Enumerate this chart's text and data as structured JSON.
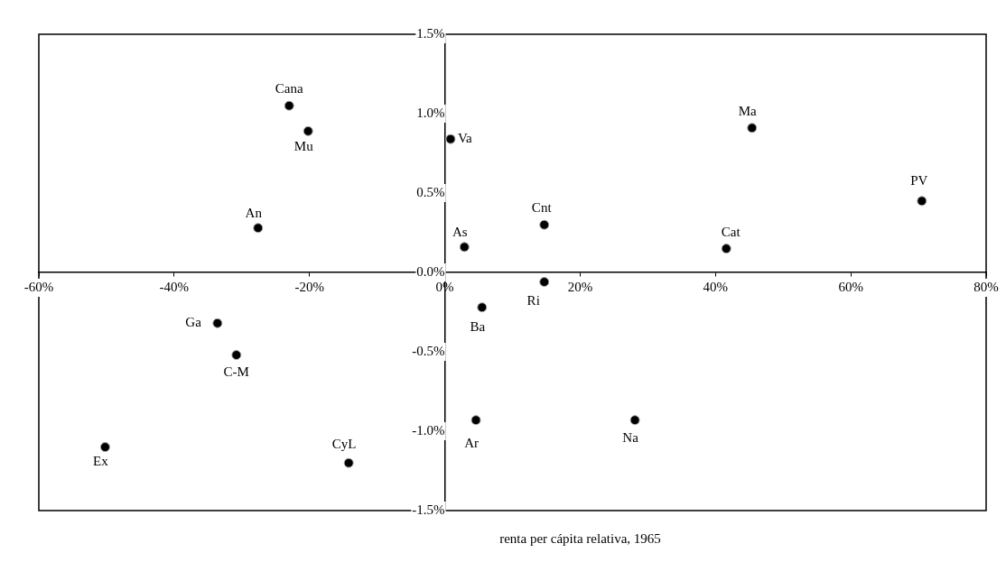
{
  "chart_data": {
    "type": "scatter",
    "xlabel": "renta per cápita relativa, 1965",
    "series": [
      {
        "color": "#000000",
        "x": [
          -23.0,
          -20.2,
          0.85,
          45.4,
          70.5,
          -27.6,
          14.7,
          2.9,
          41.6,
          14.7,
          5.5,
          -33.6,
          -30.8,
          4.6,
          28.1,
          -50.2,
          -14.2
        ],
        "values": [
          1.05,
          0.89,
          0.84,
          0.91,
          0.45,
          0.28,
          0.3,
          0.16,
          0.15,
          -0.06,
          -0.22,
          -0.32,
          -0.52,
          -0.93,
          -0.93,
          -1.1,
          -1.2
        ]
      }
    ],
    "annotations": [
      {
        "text": "Cana",
        "x": -23.0,
        "y": 1.05
      },
      {
        "text": "Mu",
        "x": -20.2,
        "y": 0.89
      },
      {
        "text": "Va",
        "x": 0.85,
        "y": 0.84
      },
      {
        "text": "Ma",
        "x": 45.4,
        "y": 0.91
      },
      {
        "text": "PV",
        "x": 70.5,
        "y": 0.45
      },
      {
        "text": "An",
        "x": -27.6,
        "y": 0.28
      },
      {
        "text": "Cnt",
        "x": 14.7,
        "y": 0.3
      },
      {
        "text": "As",
        "x": 2.9,
        "y": 0.16
      },
      {
        "text": "Cat",
        "x": 41.6,
        "y": 0.15
      },
      {
        "text": "Ri",
        "x": 14.7,
        "y": -0.06
      },
      {
        "text": "Ba",
        "x": 5.5,
        "y": -0.22
      },
      {
        "text": "Ga",
        "x": -33.6,
        "y": -0.32
      },
      {
        "text": "C-M",
        "x": -30.8,
        "y": -0.52
      },
      {
        "text": "Ar",
        "x": 4.6,
        "y": -0.93
      },
      {
        "text": "Na",
        "x": 28.1,
        "y": -0.93
      },
      {
        "text": "Ex",
        "x": -50.2,
        "y": -1.1
      },
      {
        "text": "CyL",
        "x": -14.2,
        "y": -1.2
      }
    ],
    "xlim": [
      -60,
      80
    ],
    "xticks": [
      {
        "value": -60,
        "label": "-60%"
      },
      {
        "value": -40,
        "label": "-40%"
      },
      {
        "value": -20,
        "label": "-20%"
      },
      {
        "value": 0,
        "label": "0%"
      },
      {
        "value": 20,
        "label": "20%"
      },
      {
        "value": 40,
        "label": "40%"
      },
      {
        "value": 60,
        "label": "60%"
      },
      {
        "value": 80,
        "label": "80%"
      }
    ],
    "ylim": [
      -1.5,
      1.5
    ],
    "yticks": [
      {
        "value": -1.5,
        "label": "-1.5%"
      },
      {
        "value": -1.0,
        "label": "-1.0%"
      },
      {
        "value": -0.5,
        "label": "-0.5%"
      },
      {
        "value": 0,
        "label": "0.0%"
      },
      {
        "value": 0.5,
        "label": "0.5%"
      },
      {
        "value": 1.0,
        "label": "1.0%"
      },
      {
        "value": 1.5,
        "label": "1.5%"
      }
    ],
    "marker": "circle",
    "grid": false,
    "legend": false
  }
}
